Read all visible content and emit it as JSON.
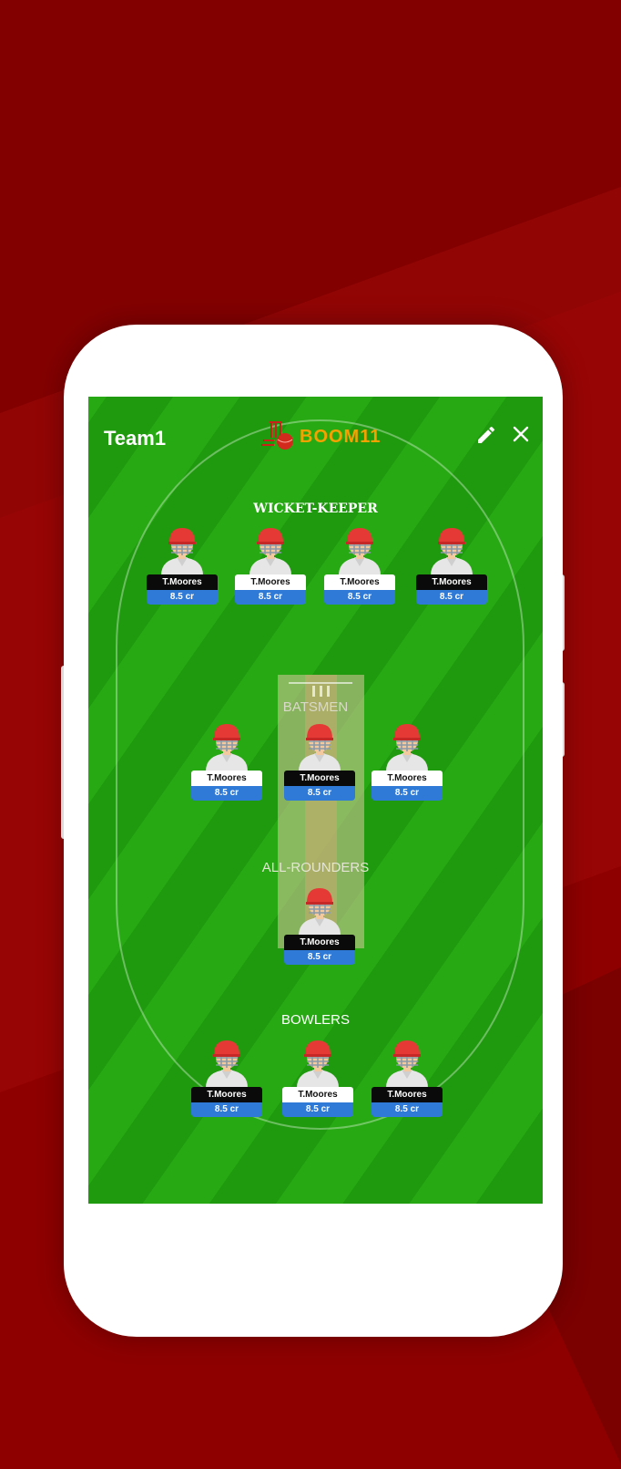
{
  "header": {
    "team_name": "Team1",
    "brand": "BOOM11"
  },
  "sections": {
    "wicket_keeper": "WICKET-KEEPER",
    "batsmen": "BATSMEN",
    "all_rounders": "ALL-ROUNDERS",
    "bowlers": "BOWLERS"
  },
  "players": {
    "wk": [
      {
        "name": "T.Moores",
        "price": "8.5 cr",
        "style": "dark"
      },
      {
        "name": "T.Moores",
        "price": "8.5 cr",
        "style": "light"
      },
      {
        "name": "T.Moores",
        "price": "8.5 cr",
        "style": "light"
      },
      {
        "name": "T.Moores",
        "price": "8.5 cr",
        "style": "dark"
      }
    ],
    "bat": [
      {
        "name": "T.Moores",
        "price": "8.5 cr",
        "style": "light"
      },
      {
        "name": "T.Moores",
        "price": "8.5 cr",
        "style": "dark"
      },
      {
        "name": "T.Moores",
        "price": "8.5 cr",
        "style": "light"
      }
    ],
    "ar": [
      {
        "name": "T.Moores",
        "price": "8.5 cr",
        "style": "dark"
      }
    ],
    "bowl": [
      {
        "name": "T.Moores",
        "price": "8.5 cr",
        "style": "dark"
      },
      {
        "name": "T.Moores",
        "price": "8.5 cr",
        "style": "light"
      },
      {
        "name": "T.Moores",
        "price": "8.5 cr",
        "style": "dark"
      }
    ]
  },
  "icons": {
    "edit": "pencil-icon",
    "close": "close-icon"
  },
  "colors": {
    "field": "#27a913",
    "price_bar": "#2e7ad6",
    "brand": "#f5a200",
    "background": "#8e0000"
  }
}
